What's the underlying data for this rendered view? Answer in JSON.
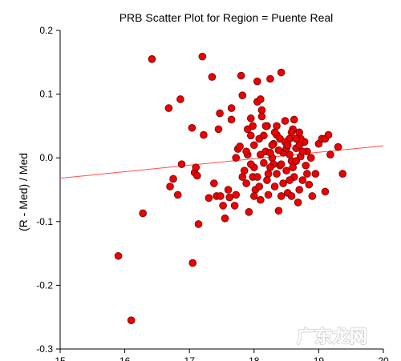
{
  "chart_data": {
    "type": "scatter",
    "title": "PRB Scatter Plot for Region = Puente Real",
    "xlabel": "",
    "ylabel": "(R - Med) / Med",
    "xlim": [
      15,
      20
    ],
    "ylim": [
      -0.3,
      0.2
    ],
    "x_ticks": [
      "15",
      "16",
      "17",
      "18",
      "19",
      "20"
    ],
    "y_ticks": [
      "0.2",
      "0.1",
      "0.0",
      "-0.1",
      "-0.2",
      "-0.3"
    ],
    "grid": false,
    "marker_color": "#ee0000",
    "marker_edge_color": "#6a0000",
    "line_color": "#ff4d4d",
    "regression_line": {
      "x": [
        15,
        20
      ],
      "y": [
        -0.032,
        0.019
      ]
    },
    "points": [
      [
        15.9,
        -0.154
      ],
      [
        16.1,
        -0.255
      ],
      [
        16.28,
        -0.087
      ],
      [
        16.42,
        0.155
      ],
      [
        16.68,
        0.078
      ],
      [
        16.7,
        -0.045
      ],
      [
        16.75,
        -0.033
      ],
      [
        16.82,
        -0.058
      ],
      [
        16.86,
        0.092
      ],
      [
        16.88,
        -0.01
      ],
      [
        17.04,
        0.047
      ],
      [
        17.05,
        -0.165
      ],
      [
        17.08,
        -0.023
      ],
      [
        17.1,
        -0.015
      ],
      [
        17.12,
        -0.028
      ],
      [
        17.14,
        -0.104
      ],
      [
        17.2,
        0.159
      ],
      [
        17.22,
        0.036
      ],
      [
        17.3,
        -0.063
      ],
      [
        17.35,
        0.127
      ],
      [
        17.38,
        -0.04
      ],
      [
        17.42,
        -0.06
      ],
      [
        17.45,
        0.045
      ],
      [
        17.47,
        0.07
      ],
      [
        17.52,
        -0.075
      ],
      [
        17.55,
        -0.095
      ],
      [
        17.6,
        -0.05
      ],
      [
        17.65,
        0.06
      ],
      [
        17.65,
        0.078
      ],
      [
        17.7,
        -0.075
      ],
      [
        17.72,
        -0.058
      ],
      [
        17.75,
        0.014
      ],
      [
        17.78,
        0.018
      ],
      [
        17.8,
        0.129
      ],
      [
        17.82,
        0.098
      ],
      [
        17.85,
        -0.02
      ],
      [
        17.88,
        -0.04
      ],
      [
        17.9,
        0.005
      ],
      [
        17.92,
        -0.085
      ],
      [
        17.95,
        0.035
      ],
      [
        17.95,
        0.062
      ],
      [
        17.98,
        -0.03
      ],
      [
        18.0,
        0.02
      ],
      [
        18.02,
        -0.05
      ],
      [
        18.05,
        0.12
      ],
      [
        18.05,
        0.088
      ],
      [
        18.08,
        0.03
      ],
      [
        18.1,
        -0.066
      ],
      [
        18.12,
        0.075
      ],
      [
        18.15,
        -0.008
      ],
      [
        18.18,
        0.01
      ],
      [
        18.2,
        0.05
      ],
      [
        18.22,
        -0.025
      ],
      [
        18.25,
        0.124
      ],
      [
        18.28,
        0.0
      ],
      [
        18.3,
        0.022
      ],
      [
        18.32,
        -0.045
      ],
      [
        18.35,
        0.036
      ],
      [
        18.38,
        -0.083
      ],
      [
        18.4,
        -0.012
      ],
      [
        18.42,
        0.134
      ],
      [
        18.45,
        0.008
      ],
      [
        18.48,
        0.058
      ],
      [
        18.5,
        -0.02
      ],
      [
        18.52,
        -0.055
      ],
      [
        18.55,
        0.03
      ],
      [
        18.58,
        -0.005
      ],
      [
        18.6,
        0.045
      ],
      [
        18.62,
        -0.03
      ],
      [
        18.65,
        0.015
      ],
      [
        18.68,
        -0.07
      ],
      [
        18.7,
        0.04
      ],
      [
        18.72,
        0.002
      ],
      [
        18.75,
        -0.035
      ],
      [
        18.78,
        0.025
      ],
      [
        18.8,
        -0.012
      ],
      [
        18.82,
        0.01
      ],
      [
        18.85,
        -0.042
      ],
      [
        19.0,
        0.022
      ],
      [
        19.05,
        0.03
      ],
      [
        19.1,
        0.03
      ],
      [
        19.1,
        -0.053
      ],
      [
        19.15,
        0.036
      ],
      [
        19.18,
        0.005
      ],
      [
        19.3,
        0.017
      ],
      [
        19.37,
        -0.025
      ],
      [
        17.9,
        0.045
      ],
      [
        18.0,
        -0.015
      ],
      [
        18.1,
        0.005
      ],
      [
        18.2,
        -0.035
      ],
      [
        18.3,
        -0.01
      ],
      [
        18.4,
        0.03
      ],
      [
        18.5,
        0.015
      ],
      [
        18.6,
        -0.015
      ],
      [
        18.7,
        0.02
      ],
      [
        18.15,
        0.035
      ],
      [
        18.25,
        -0.015
      ],
      [
        18.35,
        -0.025
      ],
      [
        18.45,
        -0.04
      ],
      [
        18.55,
        0.005
      ],
      [
        18.65,
        -0.005
      ],
      [
        18.75,
        0.01
      ],
      [
        18.05,
        -0.03
      ],
      [
        17.95,
        -0.01
      ],
      [
        18.12,
        0.065
      ],
      [
        18.35,
        0.05
      ],
      [
        18.48,
        0.025
      ],
      [
        18.58,
        0.04
      ],
      [
        18.28,
        0.02
      ],
      [
        18.08,
        -0.045
      ],
      [
        18.9,
        -0.06
      ],
      [
        18.95,
        -0.025
      ],
      [
        18.7,
        -0.05
      ],
      [
        18.42,
        -0.06
      ],
      [
        18.22,
        -0.058
      ],
      [
        18.0,
        -0.06
      ],
      [
        17.88,
        0.01
      ],
      [
        17.72,
        0.0
      ],
      [
        18.82,
        -0.025
      ],
      [
        18.62,
        0.06
      ],
      [
        18.32,
        0.04
      ],
      [
        18.18,
        0.05
      ],
      [
        17.98,
        0.05
      ],
      [
        18.88,
        0.0
      ],
      [
        18.55,
        -0.035
      ],
      [
        18.38,
        0.012
      ],
      [
        18.72,
        0.03
      ],
      [
        17.82,
        -0.03
      ],
      [
        17.62,
        -0.062
      ],
      [
        17.48,
        -0.06
      ],
      [
        18.52,
        0.02
      ],
      [
        18.65,
        0.03
      ],
      [
        18.42,
        -0.01
      ],
      [
        18.25,
        0.008
      ],
      [
        18.58,
        -0.06
      ],
      [
        18.1,
        0.092
      ]
    ]
  },
  "watermark": "广东龙网"
}
